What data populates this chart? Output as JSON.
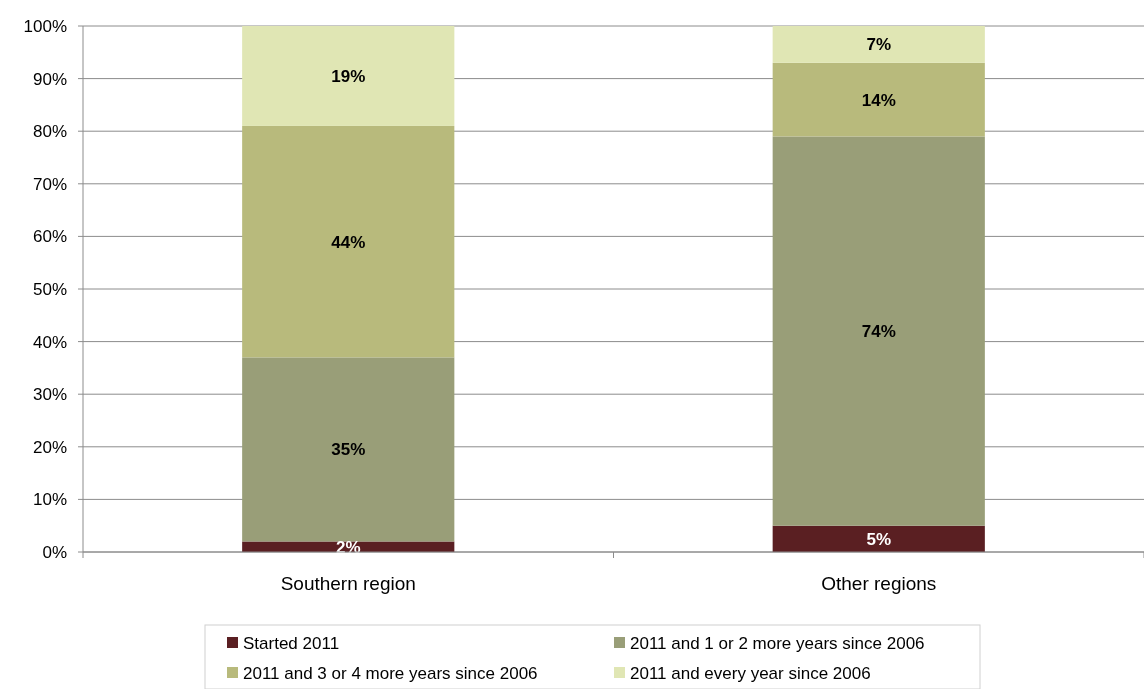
{
  "chart_data": {
    "type": "bar",
    "stacked": true,
    "categories": [
      "Southern region",
      "Other regions"
    ],
    "series": [
      {
        "name": "Started 2011",
        "color": "#5a1f22",
        "values": [
          2,
          5
        ],
        "value_labels": [
          "2%",
          "5%"
        ]
      },
      {
        "name": "2011 and 1 or 2 more years since 2006",
        "color": "#999e78",
        "values": [
          35,
          74
        ],
        "value_labels": [
          "35%",
          "74%"
        ]
      },
      {
        "name": "2011 and 3 or 4 more years since 2006",
        "color": "#b8ba7c",
        "values": [
          44,
          14
        ],
        "value_labels": [
          "44%",
          "14%"
        ]
      },
      {
        "name": "2011 and every year since 2006",
        "color": "#e0e6b4",
        "values": [
          19,
          7
        ],
        "value_labels": [
          "19%",
          "7%"
        ]
      }
    ],
    "ylim": [
      0,
      100
    ],
    "yticks": [
      {
        "value": 0,
        "label": "0%"
      },
      {
        "value": 10,
        "label": "10%"
      },
      {
        "value": 20,
        "label": "20%"
      },
      {
        "value": 30,
        "label": "30%"
      },
      {
        "value": 40,
        "label": "40%"
      },
      {
        "value": 50,
        "label": "50%"
      },
      {
        "value": 60,
        "label": "60%"
      },
      {
        "value": 70,
        "label": "70%"
      },
      {
        "value": 80,
        "label": "80%"
      },
      {
        "value": 90,
        "label": "90%"
      },
      {
        "value": 100,
        "label": "100%"
      }
    ],
    "grid": "y",
    "legend": "bottom"
  }
}
